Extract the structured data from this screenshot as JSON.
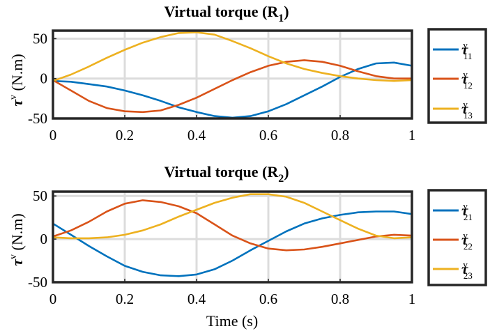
{
  "chart_data": [
    {
      "type": "line",
      "title_main": "Virtual torque (R",
      "title_sub": "1",
      "title_tail": ")",
      "ylabel_main": "τ",
      "ylabel_sup": "v",
      "ylabel_unit": " (N.m)",
      "xlabel": "",
      "xlim": [
        0,
        1
      ],
      "ylim": [
        -50,
        60
      ],
      "xticks": [
        0,
        0.2,
        0.4,
        0.6,
        0.8,
        1
      ],
      "xtick_labels": [
        "0",
        "0.2",
        "0.4",
        "0.6",
        "0.8",
        "1"
      ],
      "yticks": [
        -50,
        0,
        50
      ],
      "ytick_labels": [
        "-50",
        "0",
        "50"
      ],
      "grid": true,
      "legend_position": "outside-right",
      "series": [
        {
          "name_main": "τ",
          "name_sup": "v",
          "name_sub": "11",
          "color": "#0072BD",
          "x": [
            0,
            0.05,
            0.1,
            0.15,
            0.2,
            0.25,
            0.3,
            0.35,
            0.4,
            0.45,
            0.5,
            0.55,
            0.6,
            0.65,
            0.7,
            0.75,
            0.8,
            0.85,
            0.9,
            0.95,
            1.0
          ],
          "y": [
            -3,
            -4,
            -7,
            -10,
            -15,
            -21,
            -28,
            -36,
            -42,
            -47,
            -49,
            -47,
            -41,
            -32,
            -21,
            -10,
            2,
            12,
            19,
            20,
            16
          ]
        },
        {
          "name_main": "τ",
          "name_sup": "v",
          "name_sub": "12",
          "color": "#D95319",
          "x": [
            0,
            0.05,
            0.1,
            0.15,
            0.2,
            0.25,
            0.3,
            0.35,
            0.4,
            0.45,
            0.5,
            0.55,
            0.6,
            0.65,
            0.7,
            0.75,
            0.8,
            0.85,
            0.9,
            0.95,
            1.0
          ],
          "y": [
            -2,
            -15,
            -28,
            -37,
            -41,
            -42,
            -40,
            -33,
            -24,
            -13,
            -2,
            8,
            16,
            21,
            23,
            21,
            16,
            9,
            3,
            0,
            0
          ]
        },
        {
          "name_main": "τ",
          "name_sup": "v",
          "name_sub": "13",
          "color": "#EDB120",
          "x": [
            0,
            0.05,
            0.1,
            0.15,
            0.2,
            0.25,
            0.3,
            0.35,
            0.4,
            0.45,
            0.5,
            0.55,
            0.6,
            0.65,
            0.7,
            0.75,
            0.8,
            0.85,
            0.9,
            0.95,
            1.0
          ],
          "y": [
            -3,
            5,
            15,
            26,
            36,
            45,
            52,
            57,
            58,
            55,
            47,
            38,
            28,
            19,
            12,
            7,
            3,
            0,
            -2,
            -3,
            -2
          ]
        }
      ]
    },
    {
      "type": "line",
      "title_main": "Virtual torque (R",
      "title_sub": "2",
      "title_tail": ")",
      "ylabel_main": "τ",
      "ylabel_sup": "v",
      "ylabel_unit": " (N.m)",
      "xlabel": "Time (s)",
      "xlim": [
        0,
        1
      ],
      "ylim": [
        -50,
        55
      ],
      "xticks": [
        0,
        0.2,
        0.4,
        0.6,
        0.8,
        1
      ],
      "xtick_labels": [
        "0",
        "0.2",
        "0.4",
        "0.6",
        "0.8",
        "1"
      ],
      "yticks": [
        -50,
        0,
        50
      ],
      "ytick_labels": [
        "-50",
        "0",
        "50"
      ],
      "grid": true,
      "legend_position": "outside-right",
      "series": [
        {
          "name_main": "τ",
          "name_sup": "v",
          "name_sub": "21",
          "color": "#0072BD",
          "x": [
            0,
            0.05,
            0.1,
            0.15,
            0.2,
            0.25,
            0.3,
            0.35,
            0.4,
            0.45,
            0.5,
            0.55,
            0.6,
            0.65,
            0.7,
            0.75,
            0.8,
            0.85,
            0.9,
            0.95,
            1.0
          ],
          "y": [
            18,
            5,
            -8,
            -20,
            -31,
            -38,
            -42,
            -43,
            -41,
            -35,
            -25,
            -13,
            -2,
            9,
            18,
            24,
            28,
            31,
            32,
            32,
            29
          ]
        },
        {
          "name_main": "τ",
          "name_sup": "v",
          "name_sub": "22",
          "color": "#D95319",
          "x": [
            0,
            0.05,
            0.1,
            0.15,
            0.2,
            0.25,
            0.3,
            0.35,
            0.4,
            0.45,
            0.5,
            0.55,
            0.6,
            0.65,
            0.7,
            0.75,
            0.8,
            0.85,
            0.9,
            0.95,
            1.0
          ],
          "y": [
            3,
            10,
            20,
            32,
            41,
            45,
            43,
            38,
            30,
            17,
            4,
            -5,
            -11,
            -13,
            -12,
            -9,
            -5,
            -1,
            3,
            5,
            4
          ]
        },
        {
          "name_main": "τ",
          "name_sup": "v",
          "name_sub": "23",
          "color": "#EDB120",
          "x": [
            0,
            0.05,
            0.1,
            0.15,
            0.2,
            0.25,
            0.3,
            0.35,
            0.4,
            0.45,
            0.5,
            0.55,
            0.6,
            0.65,
            0.7,
            0.75,
            0.8,
            0.85,
            0.9,
            0.95,
            1.0
          ],
          "y": [
            2,
            1,
            1,
            2,
            5,
            10,
            17,
            26,
            34,
            42,
            48,
            52,
            52,
            49,
            42,
            32,
            22,
            12,
            4,
            1,
            2
          ]
        }
      ]
    }
  ]
}
